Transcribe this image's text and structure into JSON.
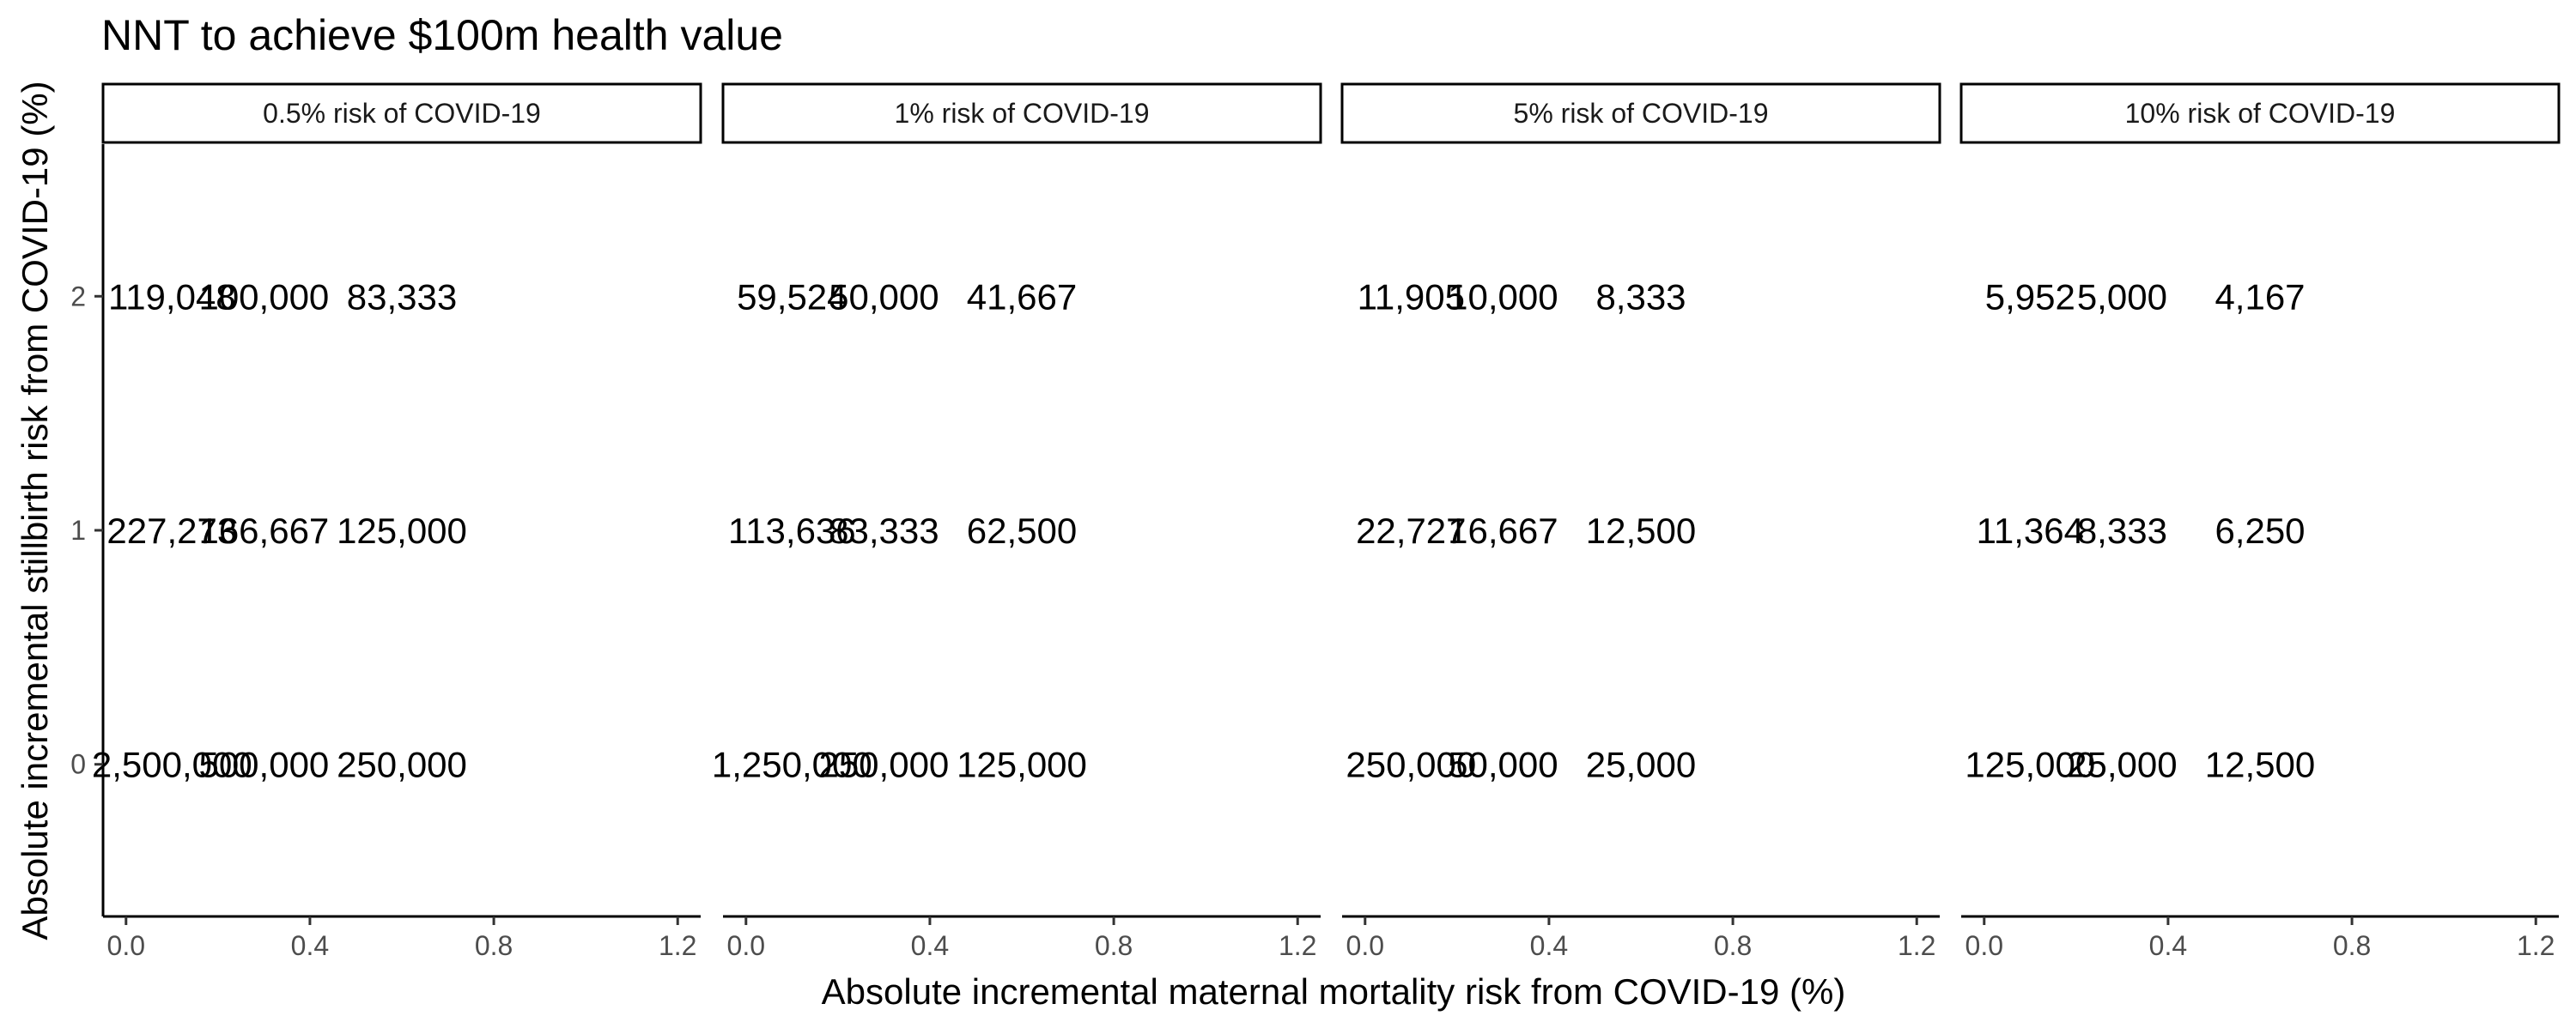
{
  "chart_data": {
    "type": "table",
    "title": "NNT to achieve $100m health value",
    "xlabel": "Absolute incremental maternal mortality risk from COVID-19 (%)",
    "ylabel": "Absolute incremental stillbirth risk from COVID-19 (%)",
    "x": [
      0.1,
      0.3,
      0.6
    ],
    "y": [
      0,
      1,
      2
    ],
    "xlim": [
      -0.05,
      1.25
    ],
    "ylim": [
      -0.65,
      2.65
    ],
    "x_ticks": [
      "0.0",
      "0.4",
      "0.8",
      "1.2"
    ],
    "x_tick_values": [
      0,
      0.4,
      0.8,
      1.2
    ],
    "y_ticks": [
      "0",
      "1",
      "2"
    ],
    "y_tick_values": [
      0,
      1,
      2
    ],
    "grid": false,
    "facets": [
      {
        "label": "0.5% risk of COVID-19",
        "values": [
          [
            "2,500,000",
            "500,000",
            "250,000"
          ],
          [
            "227,273",
            "166,667",
            "125,000"
          ],
          [
            "119,048",
            "100,000",
            "83,333"
          ]
        ]
      },
      {
        "label": "1% risk of COVID-19",
        "values": [
          [
            "1,250,000",
            "250,000",
            "125,000"
          ],
          [
            "113,636",
            "83,333",
            "62,500"
          ],
          [
            "59,524",
            "50,000",
            "41,667"
          ]
        ]
      },
      {
        "label": "5% risk of COVID-19",
        "values": [
          [
            "250,000",
            "50,000",
            "25,000"
          ],
          [
            "22,727",
            "16,667",
            "12,500"
          ],
          [
            "11,905",
            "10,000",
            "8,333"
          ]
        ]
      },
      {
        "label": "10% risk of COVID-19",
        "values": [
          [
            "125,000",
            "25,000",
            "12,500"
          ],
          [
            "11,364",
            "8,333",
            "6,250"
          ],
          [
            "5,952",
            "5,000",
            "4,167"
          ]
        ]
      }
    ]
  }
}
